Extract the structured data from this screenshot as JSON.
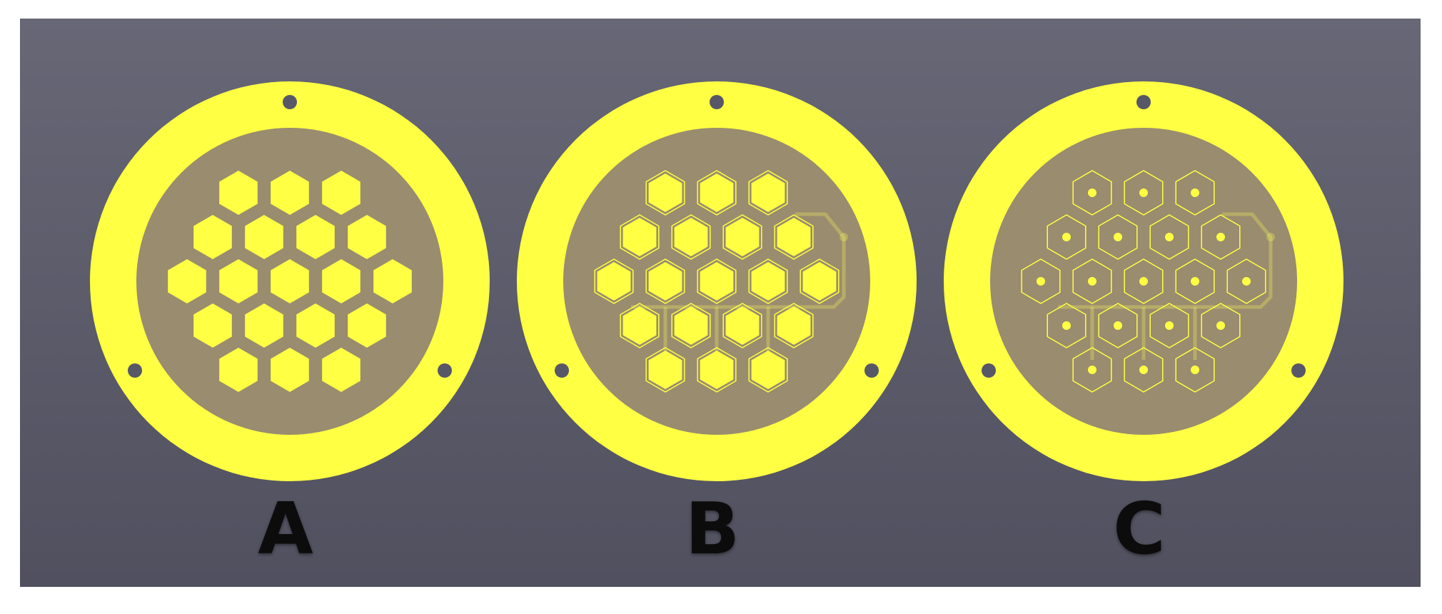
{
  "colors": {
    "background": "#5c5c6a",
    "ring": "#ffff44",
    "inner": "#9a8c6e",
    "hole": "#575767",
    "label": "#0c0c0c"
  },
  "panels": [
    {
      "label": "A",
      "style": "filled"
    },
    {
      "label": "B",
      "style": "filled-outline"
    },
    {
      "label": "C",
      "style": "outline-dot"
    }
  ]
}
